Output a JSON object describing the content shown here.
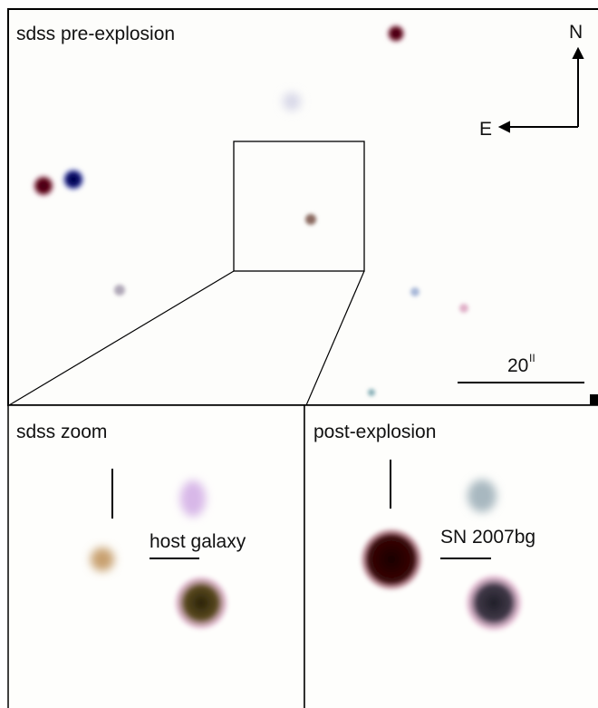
{
  "panels": {
    "pre_explosion": {
      "title": "sdss pre-explosion",
      "compass_north": "N",
      "compass_east": "E",
      "scale_label": "20",
      "scale_unit": "II"
    },
    "zoom": {
      "title": "sdss zoom",
      "annotation": "host galaxy"
    },
    "post_explosion": {
      "title": "post-explosion",
      "annotation": "SN 2007bg"
    }
  }
}
